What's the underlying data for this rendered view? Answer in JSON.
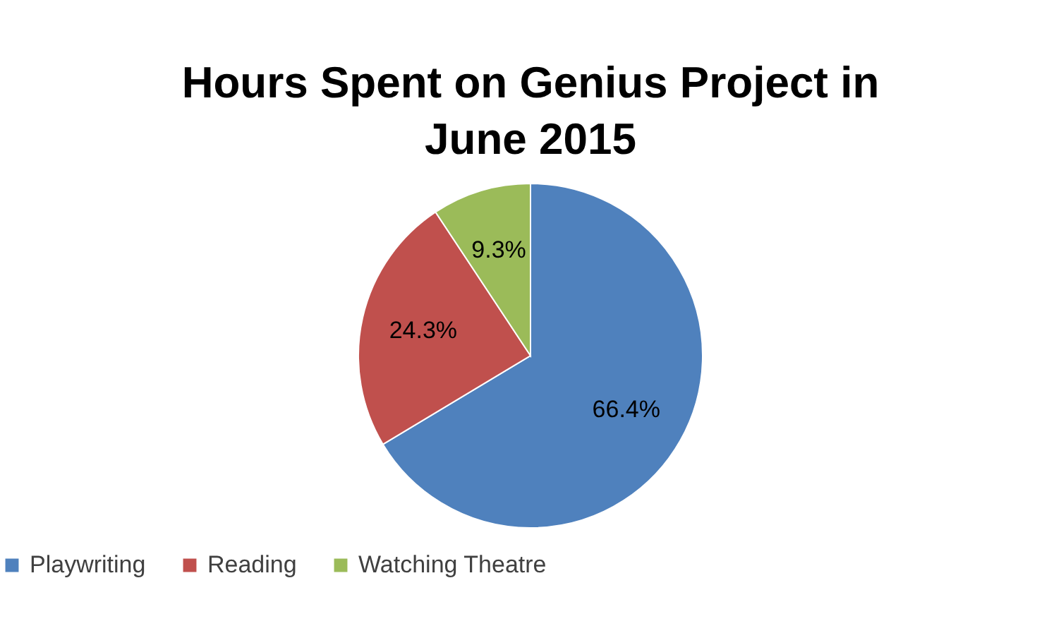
{
  "chart_data": {
    "type": "pie",
    "title": "Hours Spent on Genius Project in June 2015",
    "categories": [
      "Playwriting",
      "Reading",
      "Watching Theatre"
    ],
    "values": [
      66.4,
      24.3,
      9.3
    ],
    "colors": [
      "#4f81bd",
      "#c0504d",
      "#9bbb59"
    ],
    "value_labels": [
      "66.4%",
      "24.3%",
      "9.3%"
    ],
    "legend": "bottom"
  }
}
